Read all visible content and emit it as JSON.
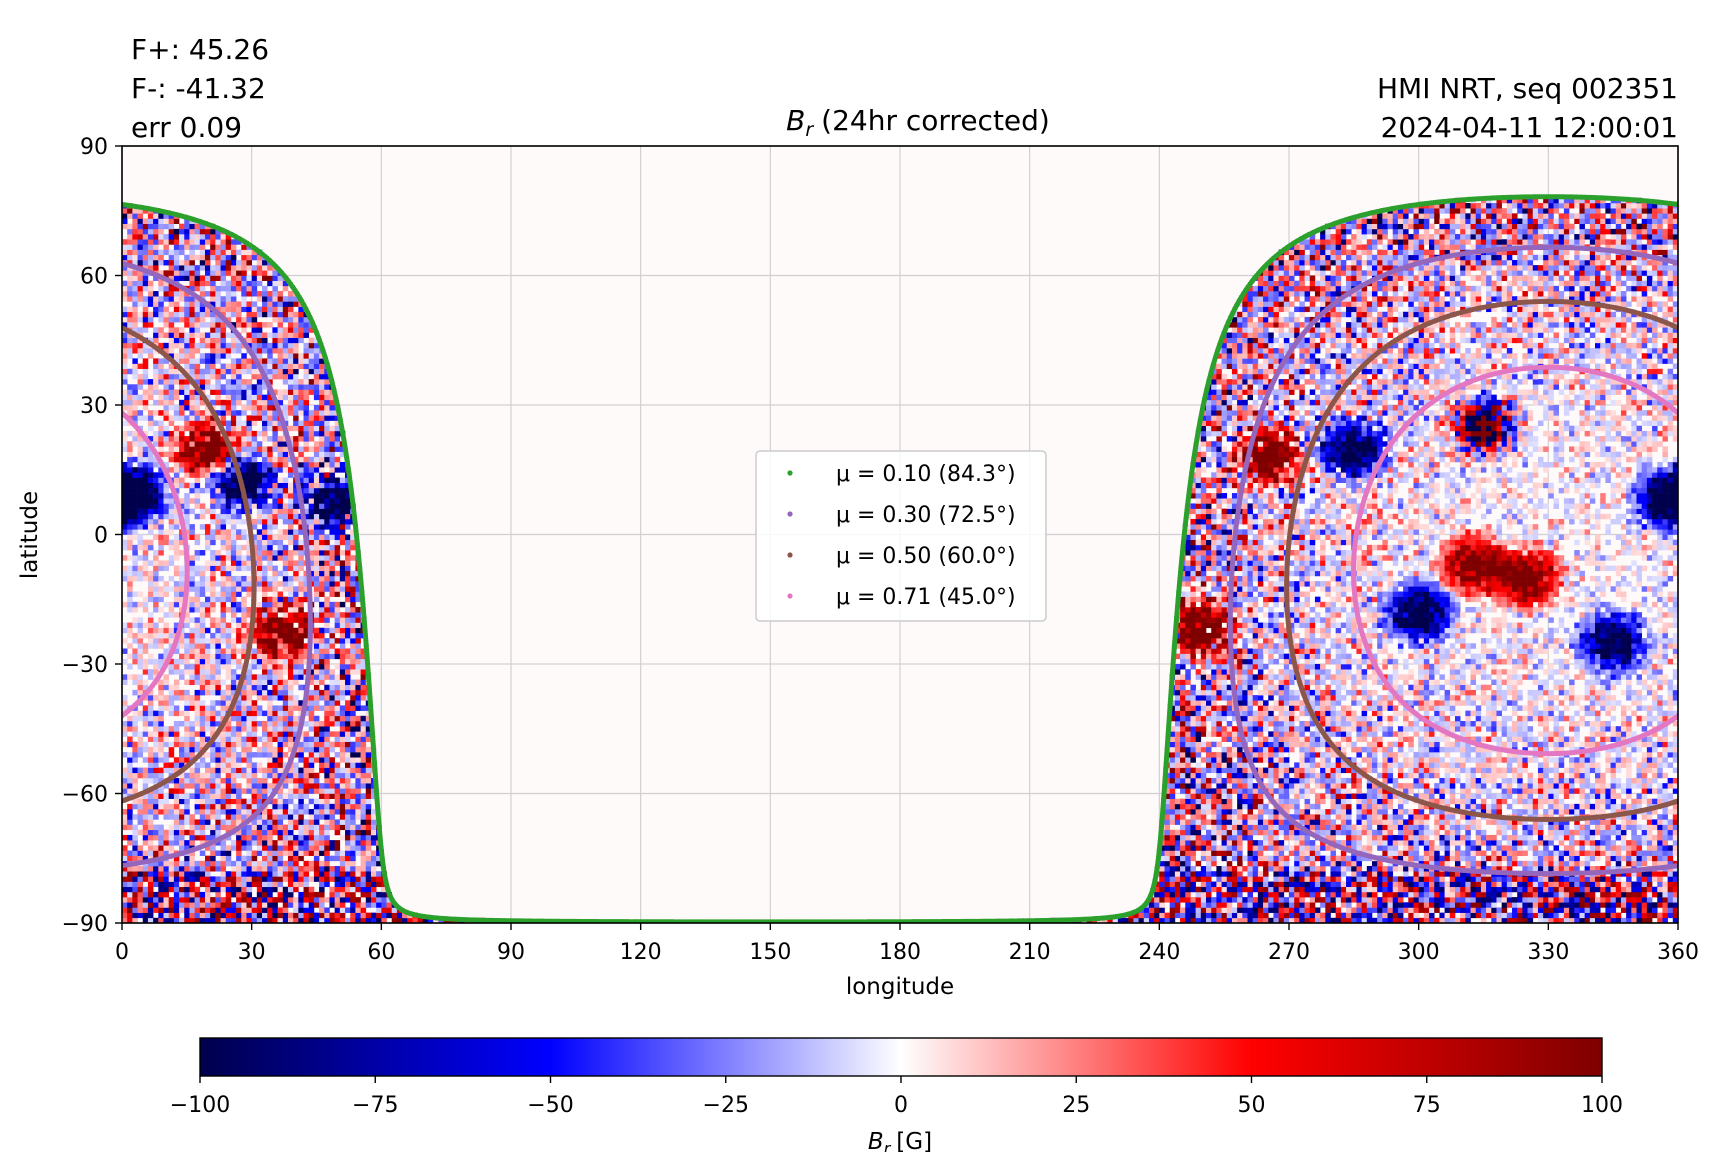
{
  "header": {
    "stats": [
      "F+: 45.26",
      "F-: -41.32",
      "err 0.09"
    ],
    "title_symbol": "B",
    "title_sub": "r",
    "title_rest": "(24hr corrected)",
    "source": "HMI NRT, seq 002351",
    "timestamp": "2024-04-11 12:00:01"
  },
  "chart_data": {
    "type": "heatmap",
    "title": "B_r (24hr corrected)",
    "xlabel": "longitude",
    "ylabel": "latitude",
    "xlim": [
      0,
      360
    ],
    "ylim": [
      -90,
      90
    ],
    "xticks": [
      0,
      30,
      60,
      90,
      120,
      150,
      180,
      210,
      240,
      270,
      300,
      330,
      360
    ],
    "yticks": [
      -90,
      -60,
      -30,
      0,
      30,
      60,
      90
    ],
    "grid": true,
    "colormap": "seismic",
    "colorbar": {
      "min": -100,
      "max": 100,
      "ticks": [
        -100,
        -75,
        -50,
        -25,
        0,
        25,
        50,
        75,
        100
      ],
      "label_symbol": "B",
      "label_sub": "r",
      "label_unit": "[G]",
      "colors": [
        "#00004c",
        "#0000ff",
        "#ffffff",
        "#ff0000",
        "#7f0000"
      ]
    },
    "legend_position": "center",
    "visible_disk_longitude_ranges": [
      [
        0,
        58.5
      ],
      [
        242,
        360
      ]
    ],
    "disk_center_longitude": 330,
    "disk_center_latitude": -6,
    "series": [
      {
        "name": "μ = 0.10 (84.3°)",
        "mu": 0.1,
        "angle_deg": 84.3,
        "color": "#2ca02c"
      },
      {
        "name": "μ = 0.30 (72.5°)",
        "mu": 0.3,
        "angle_deg": 72.5,
        "color": "#9467bd"
      },
      {
        "name": "μ = 0.50 (60.0°)",
        "mu": 0.5,
        "angle_deg": 60.0,
        "color": "#8c564b"
      },
      {
        "name": "μ = 0.71 (45.0°)",
        "mu": 0.71,
        "angle_deg": 45.0,
        "color": "#e377c2"
      }
    ],
    "active_regions": [
      {
        "lon": 315,
        "lat": 25,
        "sign": "mixed"
      },
      {
        "lon": 285,
        "lat": 20,
        "sign": "negative"
      },
      {
        "lon": 265,
        "lat": 18,
        "sign": "positive"
      },
      {
        "lon": 313,
        "lat": -7,
        "sign": "positive"
      },
      {
        "lon": 300,
        "lat": -18,
        "sign": "negative"
      },
      {
        "lon": 325,
        "lat": -10,
        "sign": "positive"
      },
      {
        "lon": 345,
        "lat": -25,
        "sign": "negative"
      },
      {
        "lon": 250,
        "lat": -22,
        "sign": "positive"
      },
      {
        "lon": 20,
        "lat": 20,
        "sign": "positive"
      },
      {
        "lon": 37,
        "lat": -22,
        "sign": "positive"
      },
      {
        "lon": 28,
        "lat": 12,
        "sign": "negative"
      },
      {
        "lon": 3,
        "lat": 10,
        "sign": "negative"
      },
      {
        "lon": 49,
        "lat": 8,
        "sign": "negative"
      },
      {
        "lon": 358,
        "lat": 8,
        "sign": "negative"
      }
    ]
  }
}
